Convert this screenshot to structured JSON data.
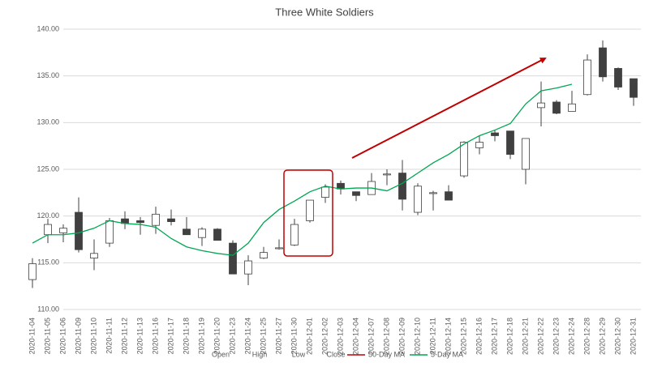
{
  "chart_data": {
    "type": "candlestick",
    "title": "Three White Soldiers",
    "categories": [
      "2020-11-04",
      "2020-11-05",
      "2020-11-06",
      "2020-11-09",
      "2020-11-10",
      "2020-11-11",
      "2020-11-12",
      "2020-11-13",
      "2020-11-16",
      "2020-11-17",
      "2020-11-18",
      "2020-11-19",
      "2020-11-20",
      "2020-11-23",
      "2020-11-24",
      "2020-11-25",
      "2020-11-27",
      "2020-11-30",
      "2020-12-01",
      "2020-12-02",
      "2020-12-03",
      "2020-12-04",
      "2020-12-07",
      "2020-12-08",
      "2020-12-09",
      "2020-12-10",
      "2020-12-11",
      "2020-12-14",
      "2020-12-15",
      "2020-12-16",
      "2020-12-17",
      "2020-12-18",
      "2020-12-21",
      "2020-12-22",
      "2020-12-23",
      "2020-12-24",
      "2020-12-28",
      "2020-12-29",
      "2020-12-30",
      "2020-12-31"
    ],
    "open": [
      113.2,
      118.0,
      118.2,
      120.4,
      115.5,
      117.1,
      119.7,
      119.5,
      119.0,
      119.7,
      118.6,
      117.7,
      118.6,
      117.1,
      113.8,
      115.5,
      116.5,
      116.9,
      119.5,
      122.0,
      123.5,
      122.6,
      122.3,
      124.4,
      124.6,
      120.4,
      122.4,
      122.6,
      124.3,
      127.3,
      128.9,
      129.1,
      125.0,
      131.6,
      132.2,
      131.2,
      133.0,
      138.0,
      135.8,
      134.7
    ],
    "high": [
      115.5,
      119.7,
      119.1,
      122.0,
      117.5,
      119.8,
      120.5,
      119.9,
      121.0,
      120.7,
      119.9,
      118.8,
      118.7,
      117.4,
      115.8,
      116.7,
      117.5,
      119.7,
      121.7,
      123.4,
      123.8,
      122.6,
      124.6,
      125.0,
      126.0,
      123.5,
      122.7,
      123.3,
      128.0,
      128.6,
      129.2,
      129.1,
      128.3,
      134.4,
      132.4,
      133.4,
      137.3,
      138.8,
      135.9,
      134.7
    ],
    "low": [
      112.3,
      117.1,
      117.2,
      116.1,
      114.2,
      116.7,
      118.6,
      118.0,
      118.1,
      119.0,
      118.0,
      116.8,
      117.4,
      113.8,
      112.6,
      115.4,
      116.4,
      116.8,
      119.3,
      121.4,
      122.3,
      121.6,
      122.3,
      123.3,
      120.6,
      120.1,
      120.6,
      121.7,
      124.1,
      126.6,
      128.0,
      126.1,
      123.4,
      129.6,
      130.9,
      131.2,
      132.9,
      134.4,
      133.5,
      131.8
    ],
    "close": [
      114.9,
      119.1,
      118.7,
      116.4,
      116.0,
      119.5,
      119.2,
      119.3,
      120.2,
      119.4,
      118.0,
      118.6,
      117.4,
      113.8,
      115.2,
      116.1,
      116.6,
      119.1,
      121.7,
      123.1,
      122.9,
      122.2,
      123.7,
      124.5,
      121.8,
      123.2,
      122.5,
      121.7,
      127.9,
      127.9,
      128.6,
      126.6,
      128.3,
      132.1,
      131.0,
      132.0,
      136.7,
      134.9,
      133.8,
      132.7
    ],
    "up_color": "#ffffff",
    "down_color": "#404040",
    "outline_color": "#404040",
    "legend": [
      "Open",
      "High",
      "Low",
      "Close"
    ],
    "series": [
      {
        "name": "50-Day MA",
        "color": "#c00000",
        "values": [
          null,
          null,
          null,
          null,
          null,
          null,
          null,
          null,
          null,
          null,
          null,
          null,
          null,
          null,
          null,
          null,
          null,
          null,
          null,
          null,
          null,
          null,
          null,
          null,
          null,
          null,
          null,
          null,
          null,
          null,
          null,
          null,
          null,
          null,
          null,
          null,
          null,
          null,
          null,
          null
        ]
      },
      {
        "name": "5-Day MA",
        "color": "#00a651",
        "values": [
          117.1,
          118.0,
          118.0,
          118.2,
          118.7,
          119.5,
          119.2,
          119.1,
          118.8,
          117.6,
          116.7,
          116.3,
          116.0,
          115.8,
          117.1,
          119.3,
          120.7,
          121.6,
          122.6,
          123.2,
          122.9,
          123.0,
          123.0,
          122.7,
          123.5,
          124.6,
          125.7,
          126.6,
          127.7,
          128.6,
          129.2,
          129.9,
          132.0,
          133.4,
          133.7,
          134.1,
          null,
          null,
          null,
          null
        ]
      }
    ],
    "ylim": [
      110,
      140
    ],
    "yticks": [
      {
        "value": 110,
        "label": "110.00"
      },
      {
        "value": 115,
        "label": "115.00"
      },
      {
        "value": 120,
        "label": "120.00"
      },
      {
        "value": 125,
        "label": "125.00"
      },
      {
        "value": 130,
        "label": "130.00"
      },
      {
        "value": 135,
        "label": "135.00"
      },
      {
        "value": 140,
        "label": "140.00"
      }
    ],
    "grid": true
  }
}
